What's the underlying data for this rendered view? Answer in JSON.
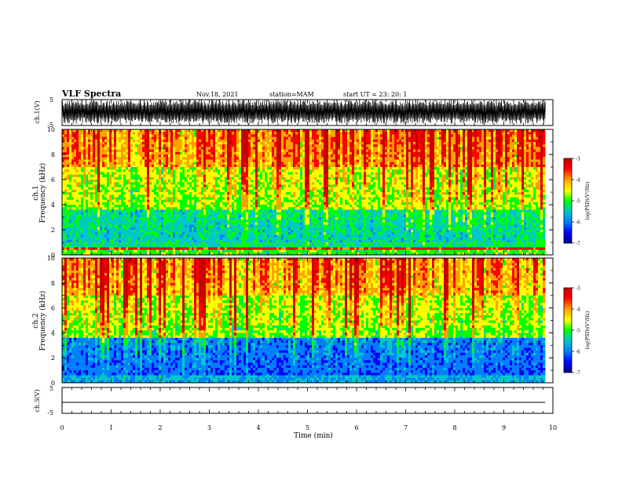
{
  "header": {
    "title": "VLF Spectra",
    "date": "Nov.18, 2021",
    "station": "station=MAM",
    "start": "start  UT  =   23: 20: 1"
  },
  "chart_data": [
    {
      "type": "line",
      "ylabel": "ch.1(V)",
      "yticks": [
        "5",
        "-5"
      ],
      "ylim": [
        -5,
        5
      ],
      "xlim": [
        0,
        10
      ],
      "description": "waveform with dense spiky impulses"
    },
    {
      "type": "heatmap",
      "ylabel_top": "ch.1",
      "ylabel": "Frequency (kHz)",
      "yticks": [
        "0",
        "2",
        "4",
        "6",
        "8",
        "10"
      ],
      "ylim": [
        0,
        10
      ],
      "xlim": [
        0,
        10
      ],
      "colorbar": {
        "label": "log(PSD)(V²/Hz)",
        "ticks": [
          "-3",
          "-4",
          "-5",
          "-6",
          "-7"
        ],
        "range": [
          -7,
          -3
        ],
        "colors": [
          "#c80000",
          "#ff0000",
          "#ffa000",
          "#ffff00",
          "#00ff00",
          "#00c8c8",
          "#0080ff",
          "#0000ff",
          "#00008c"
        ]
      }
    },
    {
      "type": "heatmap",
      "ylabel_top": "ch.2",
      "ylabel": "Frequency (kHz)",
      "yticks": [
        "0",
        "2",
        "4",
        "6",
        "8",
        "10"
      ],
      "ylim": [
        0,
        10
      ],
      "xlim": [
        0,
        10
      ],
      "colorbar": {
        "label": "log(PSD)(V²/Hz)",
        "ticks": [
          "-3",
          "-4",
          "-5",
          "-6",
          "-7"
        ],
        "range": [
          -7,
          -3
        ]
      }
    },
    {
      "type": "line",
      "ylabel": "ch.3(V)",
      "yticks": [
        "5",
        "-5"
      ],
      "ylim": [
        -5,
        5
      ],
      "xlim": [
        0,
        10
      ],
      "values": [
        0
      ]
    }
  ],
  "xaxis": {
    "label": "Time (min)",
    "ticks": [
      "0",
      "1",
      "2",
      "3",
      "4",
      "5",
      "6",
      "7",
      "8",
      "9",
      "10"
    ]
  }
}
